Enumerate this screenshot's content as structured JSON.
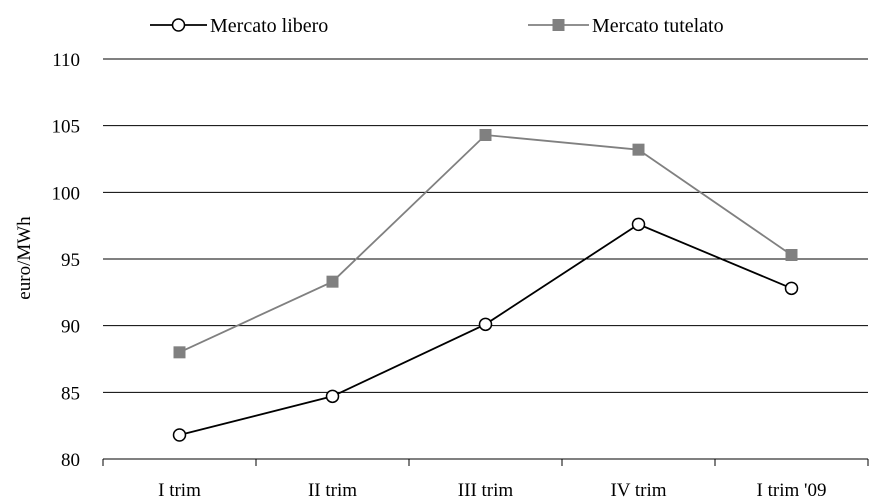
{
  "chart_data": {
    "type": "line",
    "title": "",
    "xlabel": "",
    "ylabel": "euro/MWh",
    "categories": [
      "I trim",
      "II trim",
      "III trim",
      "IV trim",
      "I trim '09"
    ],
    "ylim": [
      80,
      110
    ],
    "yticks": [
      "80",
      "85",
      "90",
      "95",
      "100",
      "105",
      "110"
    ],
    "grid": "horizontal",
    "legend_position": "top",
    "series": [
      {
        "name": "Mercato libero",
        "values": [
          81.8,
          84.7,
          90.1,
          97.6,
          92.8
        ],
        "color": "#000000",
        "marker": "open-circle"
      },
      {
        "name": "Mercato tutelato",
        "values": [
          88.0,
          93.3,
          104.3,
          103.2,
          95.3
        ],
        "color": "#808080",
        "marker": "filled-square"
      }
    ]
  }
}
